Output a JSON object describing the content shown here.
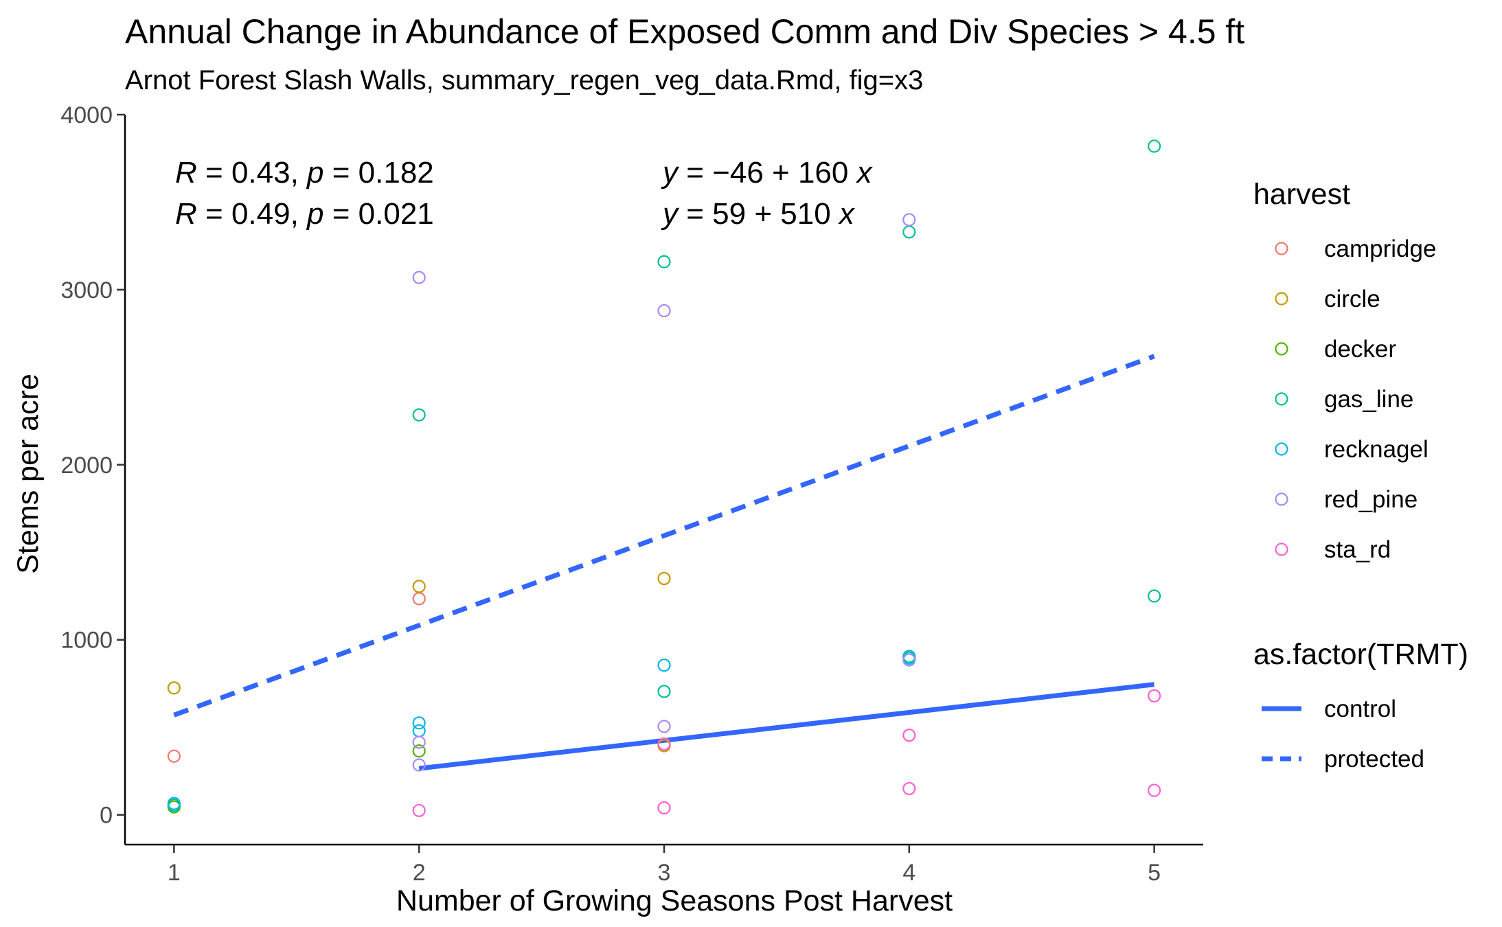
{
  "chart_data": {
    "type": "scatter",
    "title": "Annual Change in Abundance of Exposed Comm and Div Species > 4.5 ft",
    "subtitle": "Arnot Forest Slash Walls, summary_regen_veg_data.Rmd, fig=x3",
    "xlabel": "Number of Growing Seasons Post Harvest",
    "ylabel": "Stems per acre",
    "xlim": [
      0.8,
      5.2
    ],
    "ylim": [
      -170,
      4000
    ],
    "x_ticks": [
      1,
      2,
      3,
      4,
      5
    ],
    "y_ticks": [
      0,
      1000,
      2000,
      3000,
      4000
    ],
    "grid": false,
    "legend_position": "right",
    "annotations": [
      {
        "R": "0.43",
        "p": "0.182",
        "equation": [
          "−46",
          "160"
        ]
      },
      {
        "R": "0.49",
        "p": "0.021",
        "equation": [
          "59",
          "510"
        ]
      }
    ],
    "harvest_legend": {
      "title": "harvest",
      "entries": [
        {
          "name": "campridge",
          "color": "#F8766D"
        },
        {
          "name": "circle",
          "color": "#C49A00"
        },
        {
          "name": "decker",
          "color": "#53B400"
        },
        {
          "name": "gas_line",
          "color": "#00C094"
        },
        {
          "name": "recknagel",
          "color": "#00B6EB"
        },
        {
          "name": "red_pine",
          "color": "#A58AFF"
        },
        {
          "name": "sta_rd",
          "color": "#FB61D7"
        }
      ]
    },
    "trmt_legend": {
      "title": "as.factor(TRMT)",
      "entries": [
        {
          "name": "control",
          "style": "solid",
          "color": "#3366FF"
        },
        {
          "name": "protected",
          "style": "dashed",
          "color": "#3366FF"
        }
      ]
    },
    "series": [
      {
        "name": "campridge",
        "color": "#F8766D",
        "points": [
          [
            1,
            335
          ],
          [
            2,
            1235
          ]
        ]
      },
      {
        "name": "circle",
        "color": "#C49A00",
        "points": [
          [
            1,
            725
          ],
          [
            2,
            1305
          ],
          [
            3,
            1350
          ],
          [
            3,
            395
          ]
        ]
      },
      {
        "name": "decker",
        "color": "#53B400",
        "points": [
          [
            1,
            45
          ],
          [
            2,
            365
          ]
        ]
      },
      {
        "name": "gas_line",
        "color": "#00C094",
        "points": [
          [
            1,
            55
          ],
          [
            2,
            2285
          ],
          [
            3,
            3160
          ],
          [
            3,
            705
          ],
          [
            4,
            3330
          ],
          [
            4,
            905
          ],
          [
            5,
            3820
          ],
          [
            5,
            1250
          ]
        ]
      },
      {
        "name": "recknagel",
        "color": "#00B6EB",
        "points": [
          [
            1,
            65
          ],
          [
            2,
            525
          ],
          [
            2,
            480
          ],
          [
            3,
            855
          ],
          [
            4,
            895
          ]
        ]
      },
      {
        "name": "red_pine",
        "color": "#A58AFF",
        "points": [
          [
            2,
            3070
          ],
          [
            2,
            415
          ],
          [
            2,
            285
          ],
          [
            3,
            2880
          ],
          [
            3,
            505
          ],
          [
            4,
            3400
          ],
          [
            4,
            885
          ]
        ]
      },
      {
        "name": "sta_rd",
        "color": "#FB61D7",
        "points": [
          [
            2,
            25
          ],
          [
            3,
            40
          ],
          [
            3,
            405
          ],
          [
            4,
            455
          ],
          [
            4,
            150
          ],
          [
            5,
            680
          ],
          [
            5,
            140
          ]
        ]
      }
    ],
    "fit_lines": [
      {
        "name": "control",
        "style": "solid",
        "color": "#3366FF",
        "x": [
          2,
          5
        ],
        "y": [
          265,
          745
        ]
      },
      {
        "name": "protected",
        "style": "dashed",
        "color": "#3366FF",
        "x": [
          1,
          5
        ],
        "y": [
          570,
          2620
        ]
      }
    ]
  }
}
